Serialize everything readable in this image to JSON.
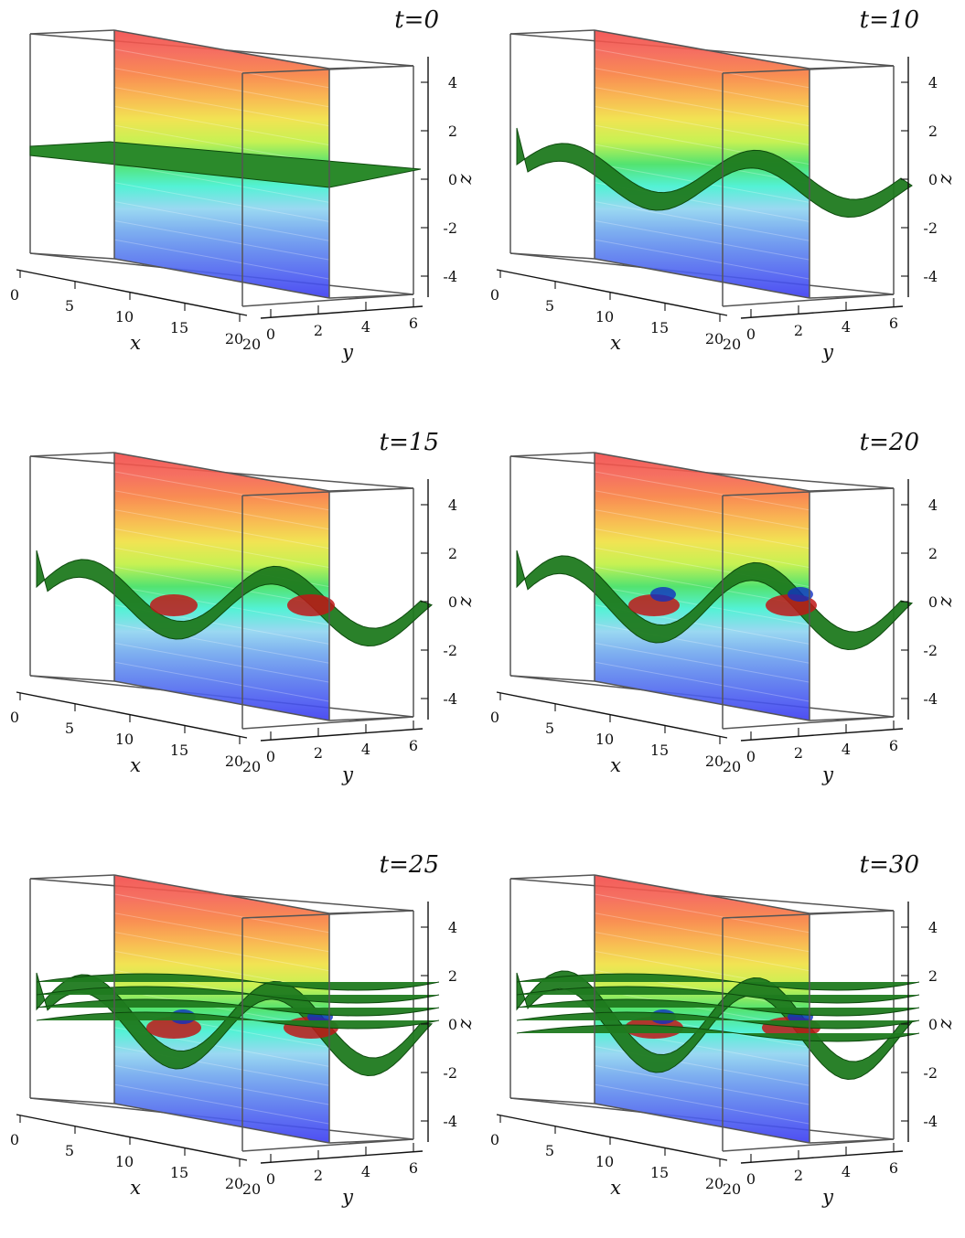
{
  "figure": {
    "panels": [
      {
        "title": "t=0",
        "stage": 0
      },
      {
        "title": "t=10",
        "stage": 1
      },
      {
        "title": "t=15",
        "stage": 2
      },
      {
        "title": "t=20",
        "stage": 3
      },
      {
        "title": "t=25",
        "stage": 4
      },
      {
        "title": "t=30",
        "stage": 5
      }
    ],
    "axes": {
      "xlabel": "x",
      "ylabel": "y",
      "zlabel": "z",
      "xticks": [
        "0",
        "5",
        "10",
        "15",
        "20"
      ],
      "yticks": [
        "0",
        "2",
        "4",
        "6"
      ],
      "zticks": [
        "4",
        "2",
        "0",
        "-2",
        "-4"
      ]
    },
    "colors": {
      "box_edge": "#555555",
      "isosurface": "#1f7a1f",
      "isosurface_edge": "#0d4a0d",
      "colormap": [
        "#3a3af0",
        "#4a5cf0",
        "#5a80ee",
        "#6fa6ee",
        "#8fd4f0",
        "#40f0d0",
        "#40e060",
        "#c0f040",
        "#f0e040",
        "#f8b040",
        "#f88040",
        "#f46050",
        "#f24848"
      ]
    }
  },
  "chart_data": {
    "type": "3d-isosurface-panels",
    "description_source": "printed labels only",
    "panels": [
      "t=0",
      "t=10",
      "t=15",
      "t=20",
      "t=25",
      "t=30"
    ],
    "x_range": [
      0,
      20
    ],
    "y_range": [
      0,
      6
    ],
    "z_range": [
      -4,
      4
    ],
    "xlabel": "x",
    "ylabel": "y",
    "zlabel": "z",
    "xticks": [
      0,
      5,
      10,
      15,
      20
    ],
    "yticks": [
      0,
      2,
      4,
      6
    ],
    "zticks": [
      4,
      2,
      0,
      -2,
      -4
    ],
    "grid": false,
    "legend": "none"
  }
}
